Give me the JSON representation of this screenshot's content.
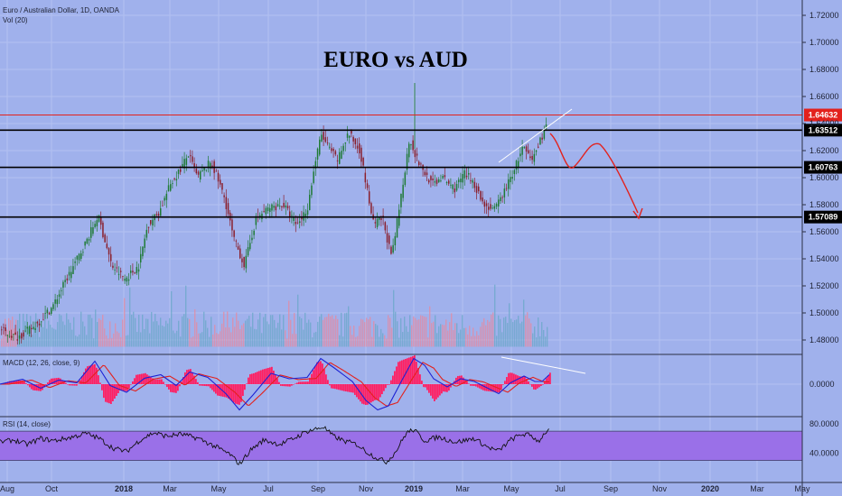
{
  "header": {
    "symbol": "Euro / Australian Dollar, 1D, OANDA",
    "volume": "Vol (20)",
    "macd": "MACD (12, 26, close, 9)",
    "rsi": "RSI (14, close)"
  },
  "colors": {
    "background": "#a0b1ec",
    "up_candle": "#1f7a35",
    "down_candle": "#8a1f2c",
    "macd_line": "#1c22d4",
    "signal_line": "#e3211c",
    "histogram": "#ff1f62",
    "rsi_band": "#9a70e8",
    "resistance_line": "#e3211c",
    "projection": "#e3211c"
  },
  "chart_data": [
    {
      "type": "candlestick",
      "title": "EURO vs AUD",
      "ylim": [
        1.47,
        1.73
      ],
      "y_axis_labels": [
        "1.72000",
        "1.70000",
        "1.68000",
        "1.66000",
        "1.64000",
        "1.62000",
        "1.60000",
        "1.58000",
        "1.56000",
        "1.54000",
        "1.52000",
        "1.50000",
        "1.48000"
      ],
      "x_axis_labels": [
        "Aug",
        "Oct",
        "2018",
        "Mar",
        "May",
        "Jul",
        "Sep",
        "Nov",
        "2019",
        "Mar",
        "May",
        "Jul",
        "Sep",
        "Nov",
        "2020",
        "Mar",
        "May"
      ],
      "horizontal_levels": [
        {
          "value": 1.64632,
          "label": "1.64632",
          "style": "red"
        },
        {
          "value": 1.63512,
          "label": "1.63512",
          "style": "black"
        },
        {
          "value": 1.60763,
          "label": "1.60763",
          "style": "black"
        },
        {
          "value": 1.57089,
          "label": "1.57089",
          "style": "black"
        }
      ],
      "price_path": [
        [
          0,
          1.488
        ],
        [
          20,
          1.482
        ],
        [
          40,
          1.49
        ],
        [
          60,
          1.505
        ],
        [
          75,
          1.525
        ],
        [
          95,
          1.55
        ],
        [
          110,
          1.572
        ],
        [
          125,
          1.535
        ],
        [
          140,
          1.525
        ],
        [
          155,
          1.535
        ],
        [
          165,
          1.565
        ],
        [
          178,
          1.575
        ],
        [
          190,
          1.595
        ],
        [
          200,
          1.605
        ],
        [
          210,
          1.617
        ],
        [
          220,
          1.6
        ],
        [
          235,
          1.612
        ],
        [
          250,
          1.585
        ],
        [
          260,
          1.555
        ],
        [
          272,
          1.535
        ],
        [
          285,
          1.57
        ],
        [
          300,
          1.578
        ],
        [
          315,
          1.58
        ],
        [
          330,
          1.565
        ],
        [
          342,
          1.578
        ],
        [
          350,
          1.61
        ],
        [
          357,
          1.632
        ],
        [
          365,
          1.622
        ],
        [
          375,
          1.613
        ],
        [
          387,
          1.633
        ],
        [
          400,
          1.62
        ],
        [
          408,
          1.59
        ],
        [
          415,
          1.565
        ],
        [
          425,
          1.57
        ],
        [
          435,
          1.54
        ],
        [
          445,
          1.585
        ],
        [
          455,
          1.63
        ],
        [
          462,
          1.615
        ],
        [
          470,
          1.605
        ],
        [
          480,
          1.595
        ],
        [
          490,
          1.6
        ],
        [
          505,
          1.592
        ],
        [
          515,
          1.603
        ],
        [
          525,
          1.598
        ],
        [
          535,
          1.582
        ],
        [
          548,
          1.575
        ],
        [
          558,
          1.588
        ],
        [
          568,
          1.602
        ],
        [
          580,
          1.622
        ],
        [
          590,
          1.612
        ],
        [
          598,
          1.625
        ],
        [
          608,
          1.642
        ]
      ],
      "volume_range": [
        1.475,
        1.516
      ]
    },
    {
      "type": "line",
      "name": "MACD (12, 26, close, 9)",
      "y_axis_labels": [
        "0.0000"
      ],
      "macd_path": [
        [
          0,
          0
        ],
        [
          25,
          0.18
        ],
        [
          45,
          -0.15
        ],
        [
          65,
          0.15
        ],
        [
          85,
          0.05
        ],
        [
          105,
          0.85
        ],
        [
          122,
          -0.05
        ],
        [
          140,
          -0.3
        ],
        [
          160,
          0.22
        ],
        [
          178,
          0.35
        ],
        [
          195,
          -0.05
        ],
        [
          210,
          0.45
        ],
        [
          230,
          0.25
        ],
        [
          250,
          -0.35
        ],
        [
          265,
          -0.95
        ],
        [
          280,
          -0.4
        ],
        [
          300,
          0.4
        ],
        [
          320,
          0.2
        ],
        [
          340,
          0.25
        ],
        [
          355,
          0.95
        ],
        [
          370,
          0.6
        ],
        [
          390,
          0.1
        ],
        [
          405,
          -0.6
        ],
        [
          418,
          -0.95
        ],
        [
          430,
          -0.8
        ],
        [
          445,
          0.15
        ],
        [
          458,
          0.95
        ],
        [
          470,
          0.7
        ],
        [
          480,
          0.2
        ],
        [
          495,
          -0.1
        ],
        [
          510,
          0.2
        ],
        [
          525,
          0.1
        ],
        [
          540,
          -0.15
        ],
        [
          552,
          -0.35
        ],
        [
          565,
          0.05
        ],
        [
          580,
          0.3
        ],
        [
          592,
          0.1
        ],
        [
          600,
          0.1
        ],
        [
          608,
          0.35
        ]
      ],
      "annotation": "divergence trendline"
    },
    {
      "type": "line",
      "name": "RSI (14, close)",
      "y_axis_labels": [
        "80.0000",
        "40.0000"
      ],
      "band": [
        30,
        70
      ],
      "rsi_path": [
        [
          0,
          55
        ],
        [
          15,
          58
        ],
        [
          30,
          52
        ],
        [
          45,
          60
        ],
        [
          60,
          57
        ],
        [
          80,
          62
        ],
        [
          95,
          67
        ],
        [
          110,
          60
        ],
        [
          125,
          47
        ],
        [
          140,
          42
        ],
        [
          155,
          58
        ],
        [
          170,
          68
        ],
        [
          185,
          63
        ],
        [
          200,
          66
        ],
        [
          220,
          60
        ],
        [
          240,
          48
        ],
        [
          255,
          38
        ],
        [
          265,
          25
        ],
        [
          278,
          45
        ],
        [
          292,
          58
        ],
        [
          310,
          52
        ],
        [
          325,
          60
        ],
        [
          340,
          70
        ],
        [
          350,
          73
        ],
        [
          358,
          76
        ],
        [
          368,
          64
        ],
        [
          380,
          57
        ],
        [
          395,
          52
        ],
        [
          408,
          40
        ],
        [
          418,
          33
        ],
        [
          428,
          28
        ],
        [
          438,
          42
        ],
        [
          450,
          68
        ],
        [
          458,
          72
        ],
        [
          470,
          57
        ],
        [
          485,
          62
        ],
        [
          505,
          55
        ],
        [
          525,
          60
        ],
        [
          540,
          48
        ],
        [
          552,
          43
        ],
        [
          565,
          58
        ],
        [
          578,
          66
        ],
        [
          588,
          64
        ],
        [
          596,
          56
        ],
        [
          604,
          69
        ],
        [
          608,
          72
        ]
      ]
    }
  ],
  "annotations": {
    "projection": "red arrow forecast",
    "trendline": "rising wedge line"
  }
}
